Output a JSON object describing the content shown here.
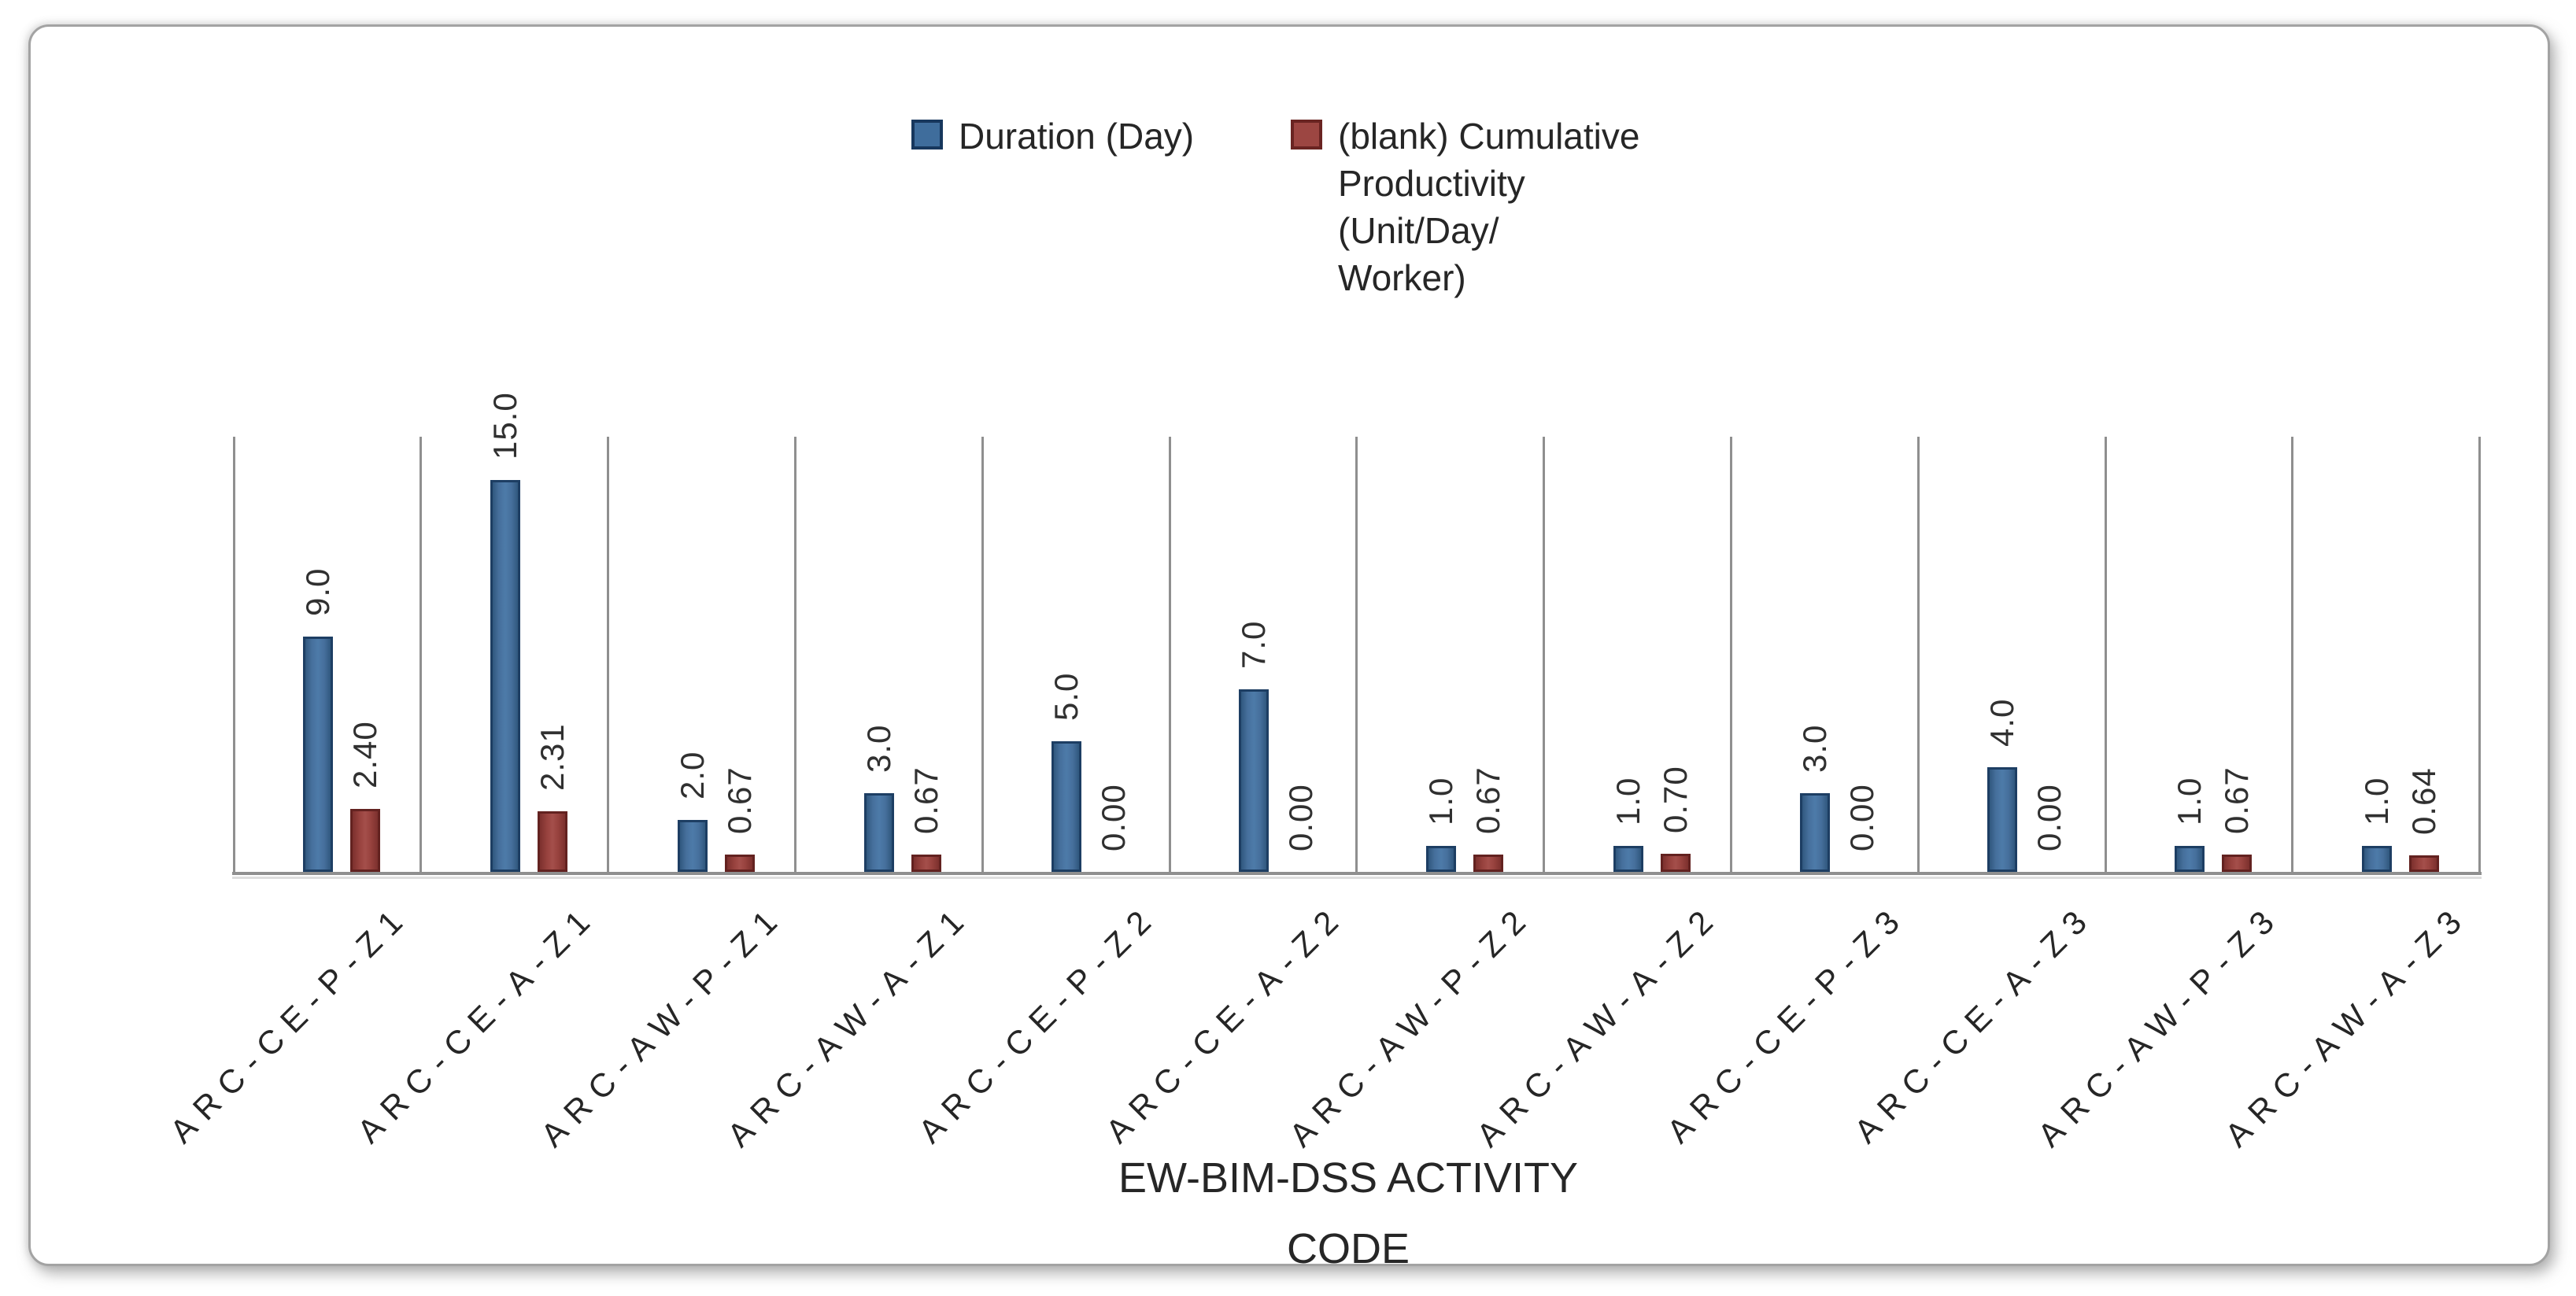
{
  "chart_data": {
    "type": "bar",
    "title": "",
    "categories": [
      "ARC-CE-P-Z1",
      "ARC-CE-A-Z1",
      "ARC-AW-P-Z1",
      "ARC-AW-A-Z1",
      "ARC-CE-P-Z2",
      "ARC-CE-A-Z2",
      "ARC-AW-P-Z2",
      "ARC-AW-A-Z2",
      "ARC-CE-P-Z3",
      "ARC-CE-A-Z3",
      "ARC-AW-P-Z3",
      "ARC-AW-A-Z3"
    ],
    "series": [
      {
        "name": "Duration (Day)",
        "values": [
          9.0,
          15.0,
          2.0,
          3.0,
          5.0,
          7.0,
          1.0,
          1.0,
          3.0,
          4.0,
          1.0,
          1.0
        ],
        "data_labels": [
          "9.0",
          "15.0",
          "2.0",
          "3.0",
          "5.0",
          "7.0",
          "1.0",
          "1.0",
          "3.0",
          "4.0",
          "1.0",
          "1.0"
        ],
        "color": "#44719f",
        "border_color": "#1d3e63"
      },
      {
        "name": "(blank) Cumulative Productivity (Unit/Day/Worker)",
        "values": [
          2.4,
          2.31,
          0.67,
          0.67,
          0.0,
          0.0,
          0.67,
          0.7,
          0.0,
          0.0,
          0.67,
          0.64
        ],
        "data_labels": [
          "2.40",
          "2.31",
          "0.67",
          "0.67",
          "0.00",
          "0.00",
          "0.67",
          "0.70",
          "0.00",
          "0.00",
          "0.67",
          "0.64"
        ],
        "color": "#9c4642",
        "border_color": "#632220"
      }
    ],
    "xlabel": "EW-BIM-DSS ACTIVITY CODE",
    "ylabel": "",
    "ylim": [
      0,
      16.7
    ],
    "legend_position": "top-center",
    "gridlines": "vertical-category-separators",
    "grid_color": "#8f8f8f"
  },
  "legend": {
    "items": [
      {
        "label": "Duration (Day)",
        "color": "#44719f"
      },
      {
        "label_lines": [
          "(blank) Cumulative",
          "Productivity",
          "(Unit/Day/",
          "Worker)"
        ],
        "color": "#9c4642"
      }
    ]
  },
  "axis_title": {
    "lines": [
      "EW-BIM-DSS ACTIVITY",
      "CODE"
    ]
  }
}
